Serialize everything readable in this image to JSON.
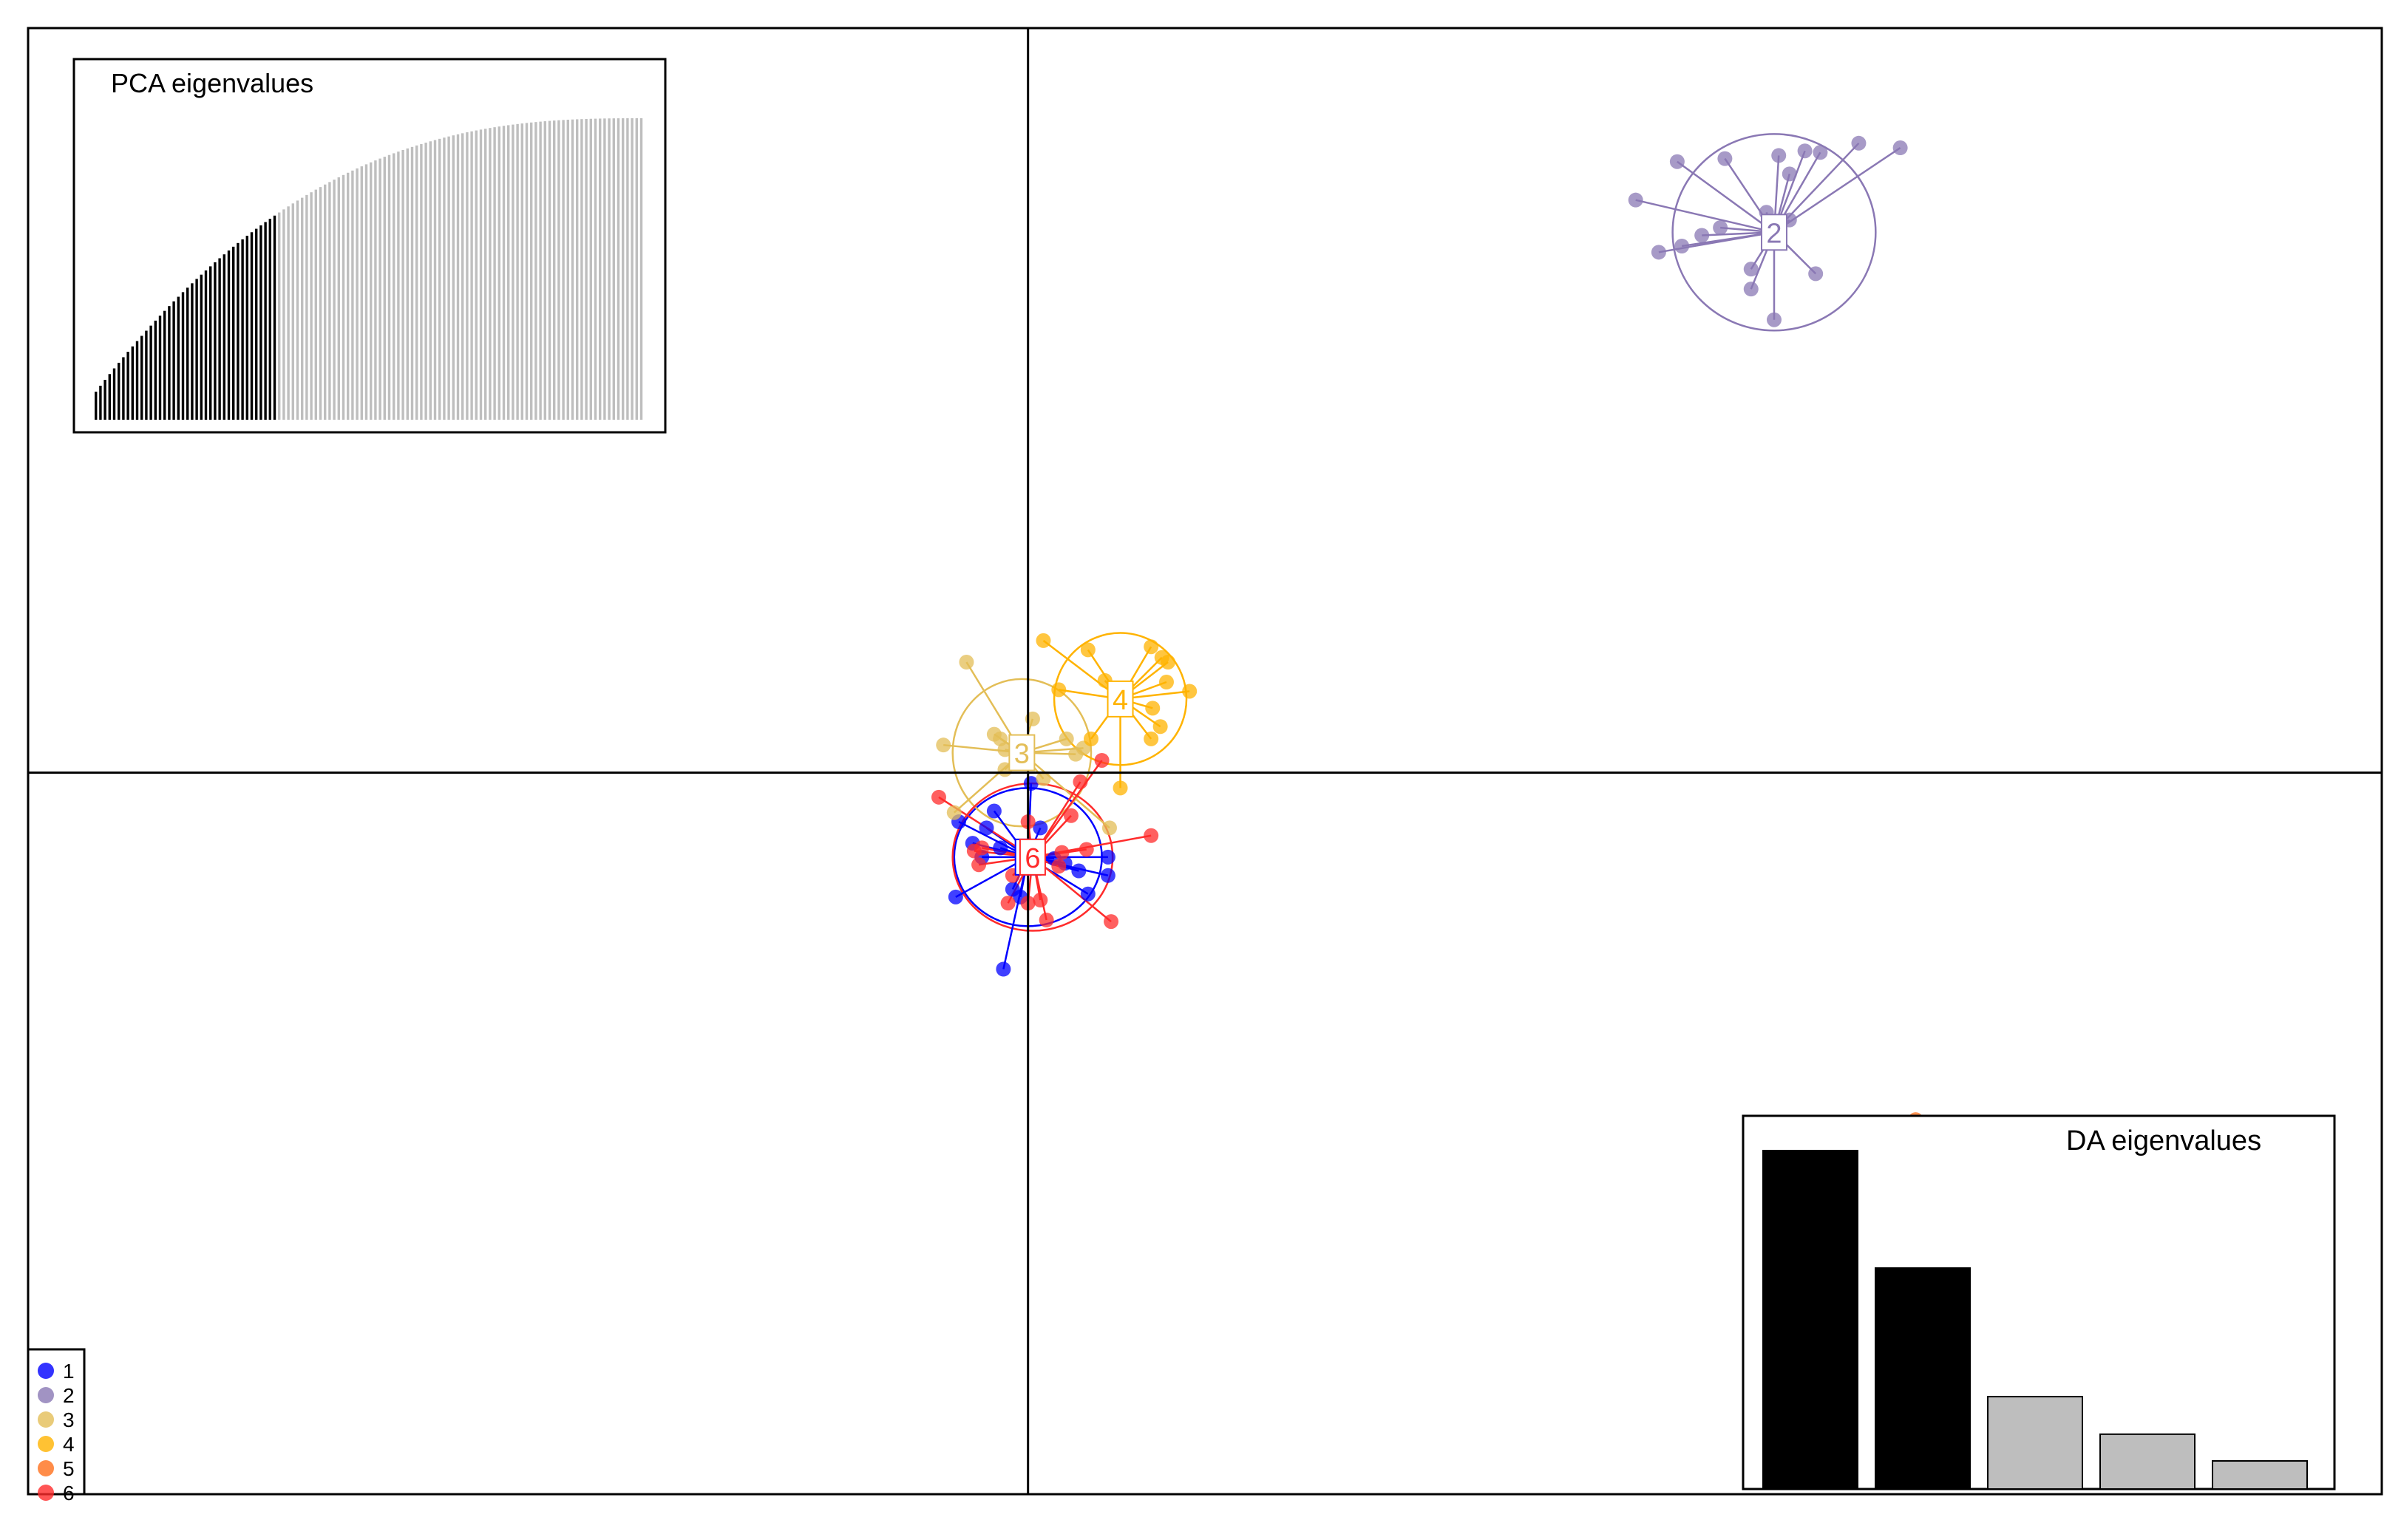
{
  "chart_data": {
    "type": "scatter",
    "title": "",
    "xlabel": "",
    "ylabel": "",
    "grid": false,
    "axes": "cross-hair through origin",
    "legend_position": "bottom-left",
    "xlim": [
      -6.5,
      8.8
    ],
    "ylim": [
      -4.7,
      4.85
    ],
    "series": [
      {
        "name": "1",
        "color": "#0000ff",
        "centroid": {
          "x": 0.0,
          "y": -0.55
        },
        "ellipse": {
          "rx": 0.48,
          "ry": 0.45
        },
        "points": [
          [
            -0.22,
            -0.25
          ],
          [
            -0.45,
            -0.32
          ],
          [
            -0.47,
            -0.81
          ],
          [
            -0.18,
            -0.49
          ],
          [
            0.08,
            -0.36
          ],
          [
            0.24,
            -0.59
          ],
          [
            -0.36,
            -0.46
          ],
          [
            -0.1,
            -0.76
          ],
          [
            0.39,
            -0.79
          ],
          [
            0.52,
            -0.55
          ],
          [
            0.52,
            -0.67
          ],
          [
            -0.16,
            -1.28
          ],
          [
            0.02,
            -0.07
          ],
          [
            -0.05,
            -0.81
          ],
          [
            -0.27,
            -0.36
          ],
          [
            0.33,
            -0.64
          ],
          [
            0.17,
            -0.56
          ],
          [
            -0.3,
            -0.55
          ]
        ]
      },
      {
        "name": "2",
        "color": "#8a78b4",
        "centroid": {
          "x": 4.85,
          "y": 3.52
        },
        "ellipse": {
          "rx": 0.66,
          "ry": 0.64
        },
        "points": [
          [
            3.95,
            3.73
          ],
          [
            4.22,
            3.98
          ],
          [
            4.38,
            3.5
          ],
          [
            4.53,
            4.0
          ],
          [
            4.88,
            4.02
          ],
          [
            5.05,
            4.05
          ],
          [
            5.4,
            4.1
          ],
          [
            5.15,
            4.04
          ],
          [
            5.67,
            4.07
          ],
          [
            5.12,
            3.25
          ],
          [
            4.8,
            3.65
          ],
          [
            4.95,
            3.6
          ],
          [
            4.7,
            3.28
          ],
          [
            4.95,
            3.9
          ],
          [
            4.85,
            3.48
          ],
          [
            4.1,
            3.39
          ],
          [
            4.85,
            2.95
          ],
          [
            4.7,
            3.15
          ],
          [
            4.25,
            3.43
          ],
          [
            4.5,
            3.55
          ]
        ]
      },
      {
        "name": "3",
        "color": "#e3be57",
        "centroid": {
          "x": -0.04,
          "y": 0.13
        },
        "ellipse": {
          "rx": 0.45,
          "ry": 0.48
        },
        "points": [
          [
            -0.4,
            0.72
          ],
          [
            -0.22,
            0.25
          ],
          [
            0.03,
            0.35
          ],
          [
            -0.18,
            0.22
          ],
          [
            0.25,
            0.22
          ],
          [
            -0.55,
            0.18
          ],
          [
            -0.15,
            0.15
          ],
          [
            0.36,
            0.16
          ],
          [
            -0.06,
            0.08
          ],
          [
            0.1,
            -0.04
          ],
          [
            0.31,
            0.12
          ],
          [
            0.53,
            -0.36
          ],
          [
            -0.48,
            -0.26
          ],
          [
            -0.15,
            0.02
          ]
        ]
      },
      {
        "name": "4",
        "color": "#ffb300",
        "centroid": {
          "x": 0.6,
          "y": 0.48
        },
        "ellipse": {
          "rx": 0.43,
          "ry": 0.43
        },
        "points": [
          [
            0.1,
            0.86
          ],
          [
            0.39,
            0.8
          ],
          [
            0.8,
            0.82
          ],
          [
            0.87,
            0.75
          ],
          [
            0.91,
            0.72
          ],
          [
            1.05,
            0.53
          ],
          [
            0.9,
            0.59
          ],
          [
            0.81,
            0.42
          ],
          [
            0.86,
            0.3
          ],
          [
            0.8,
            0.22
          ],
          [
            0.41,
            0.22
          ],
          [
            0.6,
            -0.1
          ],
          [
            0.2,
            0.54
          ],
          [
            0.5,
            0.6
          ]
        ]
      },
      {
        "name": "5",
        "color": "#ff6f1a",
        "centroid": {
          "x": 5.8,
          "y": -3.08
        },
        "ellipse": {
          "rx": 0.56,
          "ry": 0.65
        },
        "points": [
          [
            4.95,
            -2.48
          ],
          [
            5.15,
            -2.8
          ],
          [
            5.65,
            -2.8
          ],
          [
            5.77,
            -2.26
          ],
          [
            5.95,
            -2.44
          ],
          [
            5.97,
            -2.94
          ],
          [
            5.87,
            -3.2
          ],
          [
            6.02,
            -3.14
          ],
          [
            6.2,
            -2.65
          ],
          [
            5.57,
            -2.6
          ],
          [
            6.12,
            -3.52
          ],
          [
            6.02,
            -3.82
          ],
          [
            5.37,
            -3.78
          ],
          [
            4.95,
            -3.22
          ],
          [
            5.0,
            -2.95
          ],
          [
            5.47,
            -2.93
          ],
          [
            5.8,
            -2.78
          ],
          [
            5.74,
            -3.05
          ]
        ]
      },
      {
        "name": "6",
        "color": "#ff2b2b",
        "centroid": {
          "x": 0.03,
          "y": -0.55
        },
        "ellipse": {
          "rx": 0.52,
          "ry": 0.48
        },
        "points": [
          [
            -0.58,
            -0.16
          ],
          [
            -0.3,
            -0.49
          ],
          [
            -0.32,
            -0.6
          ],
          [
            0.08,
            -0.83
          ],
          [
            -0.1,
            -0.67
          ],
          [
            0.2,
            -0.61
          ],
          [
            0.48,
            0.08
          ],
          [
            0.34,
            -0.06
          ],
          [
            0.8,
            -0.41
          ],
          [
            0.54,
            -0.97
          ],
          [
            0.12,
            -0.96
          ],
          [
            0.0,
            -0.85
          ],
          [
            -0.13,
            -0.85
          ],
          [
            0.28,
            -0.28
          ],
          [
            0.22,
            -0.52
          ],
          [
            0.38,
            -0.5
          ],
          [
            -0.35,
            -0.51
          ],
          [
            0.0,
            -0.32
          ]
        ]
      }
    ],
    "insets": [
      {
        "title": "PCA eigenvalues",
        "position": "top-left",
        "type": "bar",
        "n_bars": 120,
        "n_retained": 40,
        "retained_color": "#000000",
        "other_color": "#bebebe",
        "shape": "cumulative (increasing, concave)"
      },
      {
        "title": "DA eigenvalues",
        "position": "bottom-right",
        "type": "bar",
        "values": [
          100,
          65.3,
          27.3,
          16.2,
          8.3
        ],
        "n_retained": 2,
        "retained_color": "#000000",
        "other_color": "#bebebe"
      }
    ]
  }
}
